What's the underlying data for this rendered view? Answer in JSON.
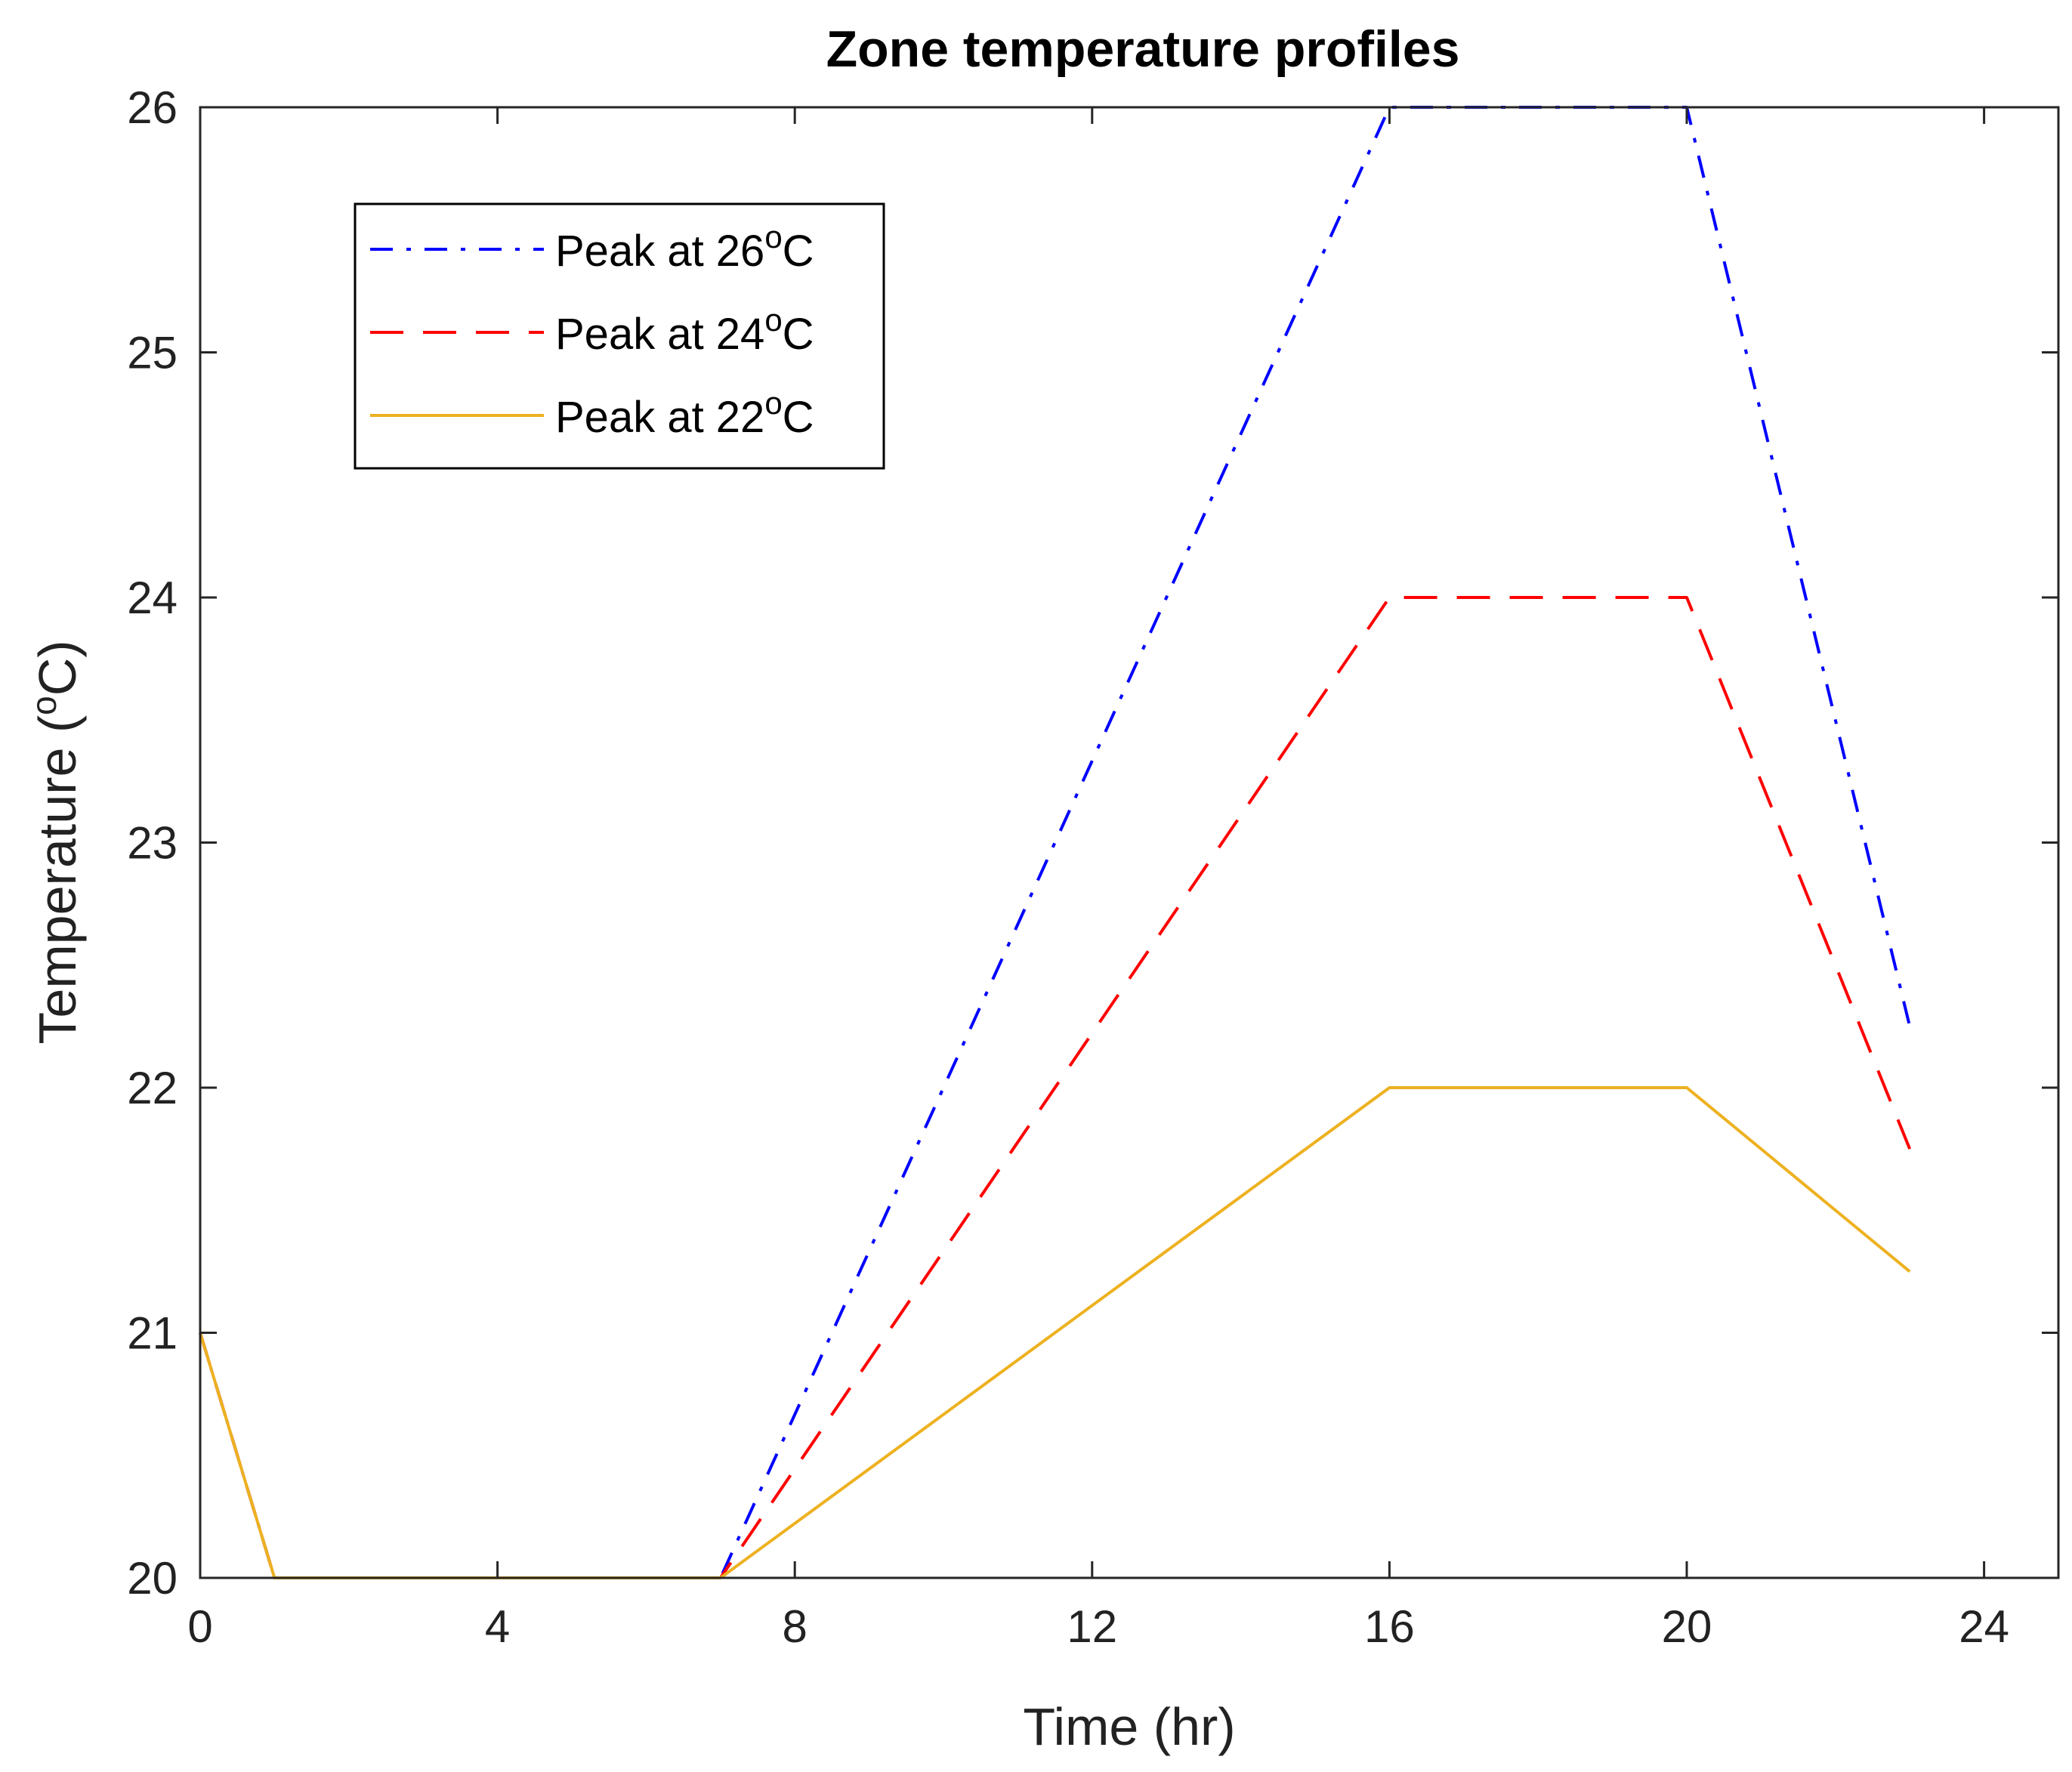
{
  "chart_data": {
    "type": "line",
    "title": "Zone temperature profiles",
    "xlabel": "Time (hr)",
    "ylabel_main": "Temperature (",
    "ylabel_sup": "o",
    "ylabel_end": "C)",
    "xlim": [
      0,
      25
    ],
    "ylim": [
      20,
      26
    ],
    "x_ticks": [
      0,
      4,
      8,
      12,
      16,
      20,
      24
    ],
    "y_ticks": [
      20,
      21,
      22,
      23,
      24,
      25,
      26
    ],
    "legend_position": "top-left",
    "series": [
      {
        "name": "Peak at 26°C",
        "label_main": "Peak at 26",
        "label_sup": "o",
        "label_end": "C",
        "color": "#0000ff",
        "style": "dashdot",
        "points": [
          [
            0,
            21
          ],
          [
            1,
            20
          ],
          [
            7,
            20
          ],
          [
            16,
            26
          ],
          [
            20,
            26
          ],
          [
            23,
            22.25
          ]
        ]
      },
      {
        "name": "Peak at 24°C",
        "label_main": "Peak at 24",
        "label_sup": "o",
        "label_end": "C",
        "color": "#ff0000",
        "style": "dashed",
        "points": [
          [
            0,
            21
          ],
          [
            1,
            20
          ],
          [
            7,
            20
          ],
          [
            16,
            24
          ],
          [
            20,
            24
          ],
          [
            23,
            21.75
          ]
        ]
      },
      {
        "name": "Peak at 22°C",
        "label_main": "Peak at 22",
        "label_sup": "o",
        "label_end": "C",
        "color": "#edb120",
        "style": "solid",
        "points": [
          [
            0,
            21
          ],
          [
            1,
            20
          ],
          [
            7,
            20
          ],
          [
            16,
            22
          ],
          [
            20,
            22
          ],
          [
            23,
            21.25
          ]
        ]
      }
    ]
  }
}
